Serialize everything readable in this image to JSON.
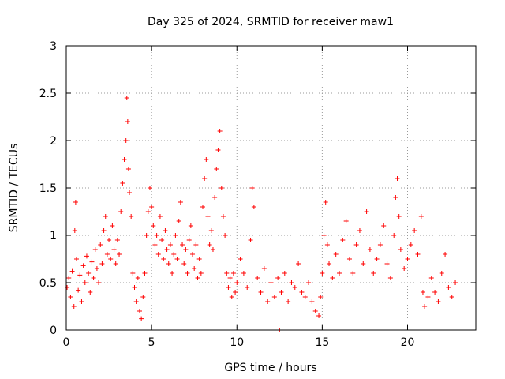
{
  "chart_data": {
    "type": "scatter",
    "title": "Day 325 of 2024, SRMTID for receiver maw1",
    "xlabel": "GPS time / hours",
    "ylabel": "SRMTID / TECUs",
    "xlim": [
      0,
      24
    ],
    "ylim": [
      0,
      3
    ],
    "xticks": [
      0,
      5,
      10,
      15,
      20
    ],
    "xtick_labels": [
      "0",
      "5",
      "10",
      "15",
      "20"
    ],
    "yticks": [
      0,
      0.5,
      1,
      1.5,
      2,
      2.5,
      3
    ],
    "ytick_labels": [
      "0",
      "0.5",
      "1",
      "1.5",
      "2",
      "2.5",
      "3"
    ],
    "grid": true,
    "marker": "+",
    "color": "#ff0000",
    "series": [
      {
        "name": "SRMTID",
        "points": [
          [
            0.05,
            0.45
          ],
          [
            0.15,
            0.55
          ],
          [
            0.25,
            0.35
          ],
          [
            0.35,
            0.62
          ],
          [
            0.45,
            0.25
          ],
          [
            0.5,
            1.05
          ],
          [
            0.55,
            1.35
          ],
          [
            0.6,
            0.75
          ],
          [
            0.7,
            0.42
          ],
          [
            0.8,
            0.58
          ],
          [
            0.9,
            0.3
          ],
          [
            1.0,
            0.68
          ],
          [
            1.1,
            0.5
          ],
          [
            1.2,
            0.78
          ],
          [
            1.3,
            0.6
          ],
          [
            1.4,
            0.4
          ],
          [
            1.5,
            0.72
          ],
          [
            1.6,
            0.55
          ],
          [
            1.7,
            0.85
          ],
          [
            1.8,
            0.65
          ],
          [
            1.9,
            0.5
          ],
          [
            2.0,
            0.9
          ],
          [
            2.1,
            0.7
          ],
          [
            2.2,
            1.05
          ],
          [
            2.3,
            1.2
          ],
          [
            2.4,
            0.8
          ],
          [
            2.5,
            0.95
          ],
          [
            2.6,
            0.75
          ],
          [
            2.7,
            1.1
          ],
          [
            2.8,
            0.85
          ],
          [
            2.9,
            0.7
          ],
          [
            3.0,
            0.95
          ],
          [
            3.1,
            0.8
          ],
          [
            3.2,
            1.25
          ],
          [
            3.3,
            1.55
          ],
          [
            3.4,
            1.8
          ],
          [
            3.5,
            2.0
          ],
          [
            3.55,
            2.45
          ],
          [
            3.6,
            2.2
          ],
          [
            3.65,
            1.7
          ],
          [
            3.7,
            1.45
          ],
          [
            3.8,
            1.2
          ],
          [
            3.9,
            0.6
          ],
          [
            4.0,
            0.45
          ],
          [
            4.1,
            0.3
          ],
          [
            4.2,
            0.55
          ],
          [
            4.3,
            0.2
          ],
          [
            4.4,
            0.12
          ],
          [
            4.5,
            0.35
          ],
          [
            4.6,
            0.6
          ],
          [
            4.7,
            1.0
          ],
          [
            4.8,
            1.25
          ],
          [
            4.9,
            1.5
          ],
          [
            5.0,
            1.3
          ],
          [
            5.1,
            1.1
          ],
          [
            5.2,
            0.9
          ],
          [
            5.3,
            1.0
          ],
          [
            5.4,
            0.8
          ],
          [
            5.5,
            1.2
          ],
          [
            5.6,
            0.95
          ],
          [
            5.7,
            0.75
          ],
          [
            5.8,
            1.05
          ],
          [
            5.9,
            0.85
          ],
          [
            6.0,
            0.7
          ],
          [
            6.1,
            0.9
          ],
          [
            6.2,
            0.6
          ],
          [
            6.3,
            0.8
          ],
          [
            6.4,
            1.0
          ],
          [
            6.5,
            0.75
          ],
          [
            6.6,
            1.15
          ],
          [
            6.7,
            1.35
          ],
          [
            6.8,
            0.9
          ],
          [
            6.9,
            0.7
          ],
          [
            7.0,
            0.85
          ],
          [
            7.1,
            0.6
          ],
          [
            7.2,
            0.95
          ],
          [
            7.3,
            1.1
          ],
          [
            7.4,
            0.8
          ],
          [
            7.5,
            0.65
          ],
          [
            7.6,
            0.9
          ],
          [
            7.7,
            0.55
          ],
          [
            7.8,
            0.75
          ],
          [
            7.9,
            0.6
          ],
          [
            8.0,
            1.3
          ],
          [
            8.1,
            1.6
          ],
          [
            8.2,
            1.8
          ],
          [
            8.3,
            1.2
          ],
          [
            8.4,
            0.9
          ],
          [
            8.5,
            1.05
          ],
          [
            8.6,
            0.85
          ],
          [
            8.7,
            1.4
          ],
          [
            8.8,
            1.7
          ],
          [
            8.9,
            1.9
          ],
          [
            9.0,
            2.1
          ],
          [
            9.1,
            1.5
          ],
          [
            9.2,
            1.2
          ],
          [
            9.3,
            1.0
          ],
          [
            9.4,
            0.6
          ],
          [
            9.5,
            0.45
          ],
          [
            9.6,
            0.55
          ],
          [
            9.7,
            0.35
          ],
          [
            9.8,
            0.6
          ],
          [
            9.9,
            0.4
          ],
          [
            10.0,
            0.5
          ],
          [
            10.2,
            0.75
          ],
          [
            10.4,
            0.6
          ],
          [
            10.6,
            0.45
          ],
          [
            10.8,
            0.95
          ],
          [
            10.9,
            1.5
          ],
          [
            11.0,
            1.3
          ],
          [
            11.2,
            0.55
          ],
          [
            11.4,
            0.4
          ],
          [
            11.6,
            0.65
          ],
          [
            11.8,
            0.3
          ],
          [
            12.0,
            0.5
          ],
          [
            12.2,
            0.35
          ],
          [
            12.4,
            0.55
          ],
          [
            12.5,
            0.0
          ],
          [
            12.6,
            0.4
          ],
          [
            12.8,
            0.6
          ],
          [
            13.0,
            0.3
          ],
          [
            13.2,
            0.5
          ],
          [
            13.4,
            0.45
          ],
          [
            13.6,
            0.7
          ],
          [
            13.8,
            0.4
          ],
          [
            14.0,
            0.35
          ],
          [
            14.2,
            0.5
          ],
          [
            14.4,
            0.3
          ],
          [
            14.6,
            0.2
          ],
          [
            14.8,
            0.15
          ],
          [
            14.9,
            0.35
          ],
          [
            15.0,
            0.6
          ],
          [
            15.1,
            1.0
          ],
          [
            15.2,
            1.35
          ],
          [
            15.3,
            0.9
          ],
          [
            15.4,
            0.7
          ],
          [
            15.6,
            0.55
          ],
          [
            15.8,
            0.8
          ],
          [
            16.0,
            0.6
          ],
          [
            16.2,
            0.95
          ],
          [
            16.4,
            1.15
          ],
          [
            16.6,
            0.75
          ],
          [
            16.8,
            0.6
          ],
          [
            17.0,
            0.9
          ],
          [
            17.2,
            1.05
          ],
          [
            17.4,
            0.7
          ],
          [
            17.6,
            1.25
          ],
          [
            17.8,
            0.85
          ],
          [
            18.0,
            0.6
          ],
          [
            18.2,
            0.75
          ],
          [
            18.4,
            0.9
          ],
          [
            18.6,
            1.1
          ],
          [
            18.8,
            0.7
          ],
          [
            19.0,
            0.55
          ],
          [
            19.2,
            1.0
          ],
          [
            19.3,
            1.4
          ],
          [
            19.4,
            1.6
          ],
          [
            19.5,
            1.2
          ],
          [
            19.6,
            0.85
          ],
          [
            19.8,
            0.65
          ],
          [
            20.0,
            0.75
          ],
          [
            20.2,
            0.9
          ],
          [
            20.4,
            1.05
          ],
          [
            20.6,
            0.8
          ],
          [
            20.8,
            1.2
          ],
          [
            20.9,
            0.4
          ],
          [
            21.0,
            0.25
          ],
          [
            21.2,
            0.35
          ],
          [
            21.4,
            0.55
          ],
          [
            21.6,
            0.4
          ],
          [
            21.8,
            0.3
          ],
          [
            22.0,
            0.6
          ],
          [
            22.2,
            0.8
          ],
          [
            22.4,
            0.45
          ],
          [
            22.6,
            0.35
          ],
          [
            22.8,
            0.5
          ]
        ]
      }
    ]
  }
}
